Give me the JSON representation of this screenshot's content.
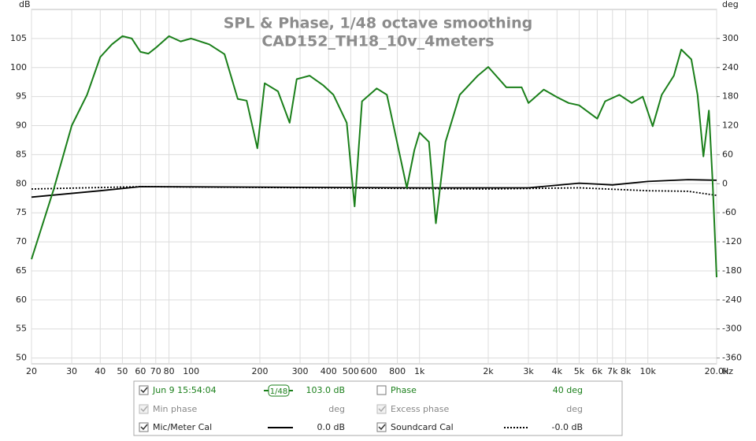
{
  "chart_data": {
    "type": "line",
    "title": "SPL & Phase, 1/48 octave smoothing",
    "subtitle": "CAD152_TH18_10v_4meters",
    "ylabel": "dB",
    "y2label": "deg",
    "xlabel": "Hz",
    "xscale": "log",
    "grid": true,
    "xlim": [
      20,
      20000
    ],
    "xticks": [
      20,
      30,
      40,
      50,
      60,
      70,
      80,
      100,
      200,
      300,
      400,
      500,
      600,
      800,
      {
        "value": 1000,
        "label": "1k"
      },
      {
        "value": 2000,
        "label": "2k"
      },
      {
        "value": 3000,
        "label": "3k"
      },
      {
        "value": 4000,
        "label": "4k"
      },
      {
        "value": 5000,
        "label": "5k"
      },
      {
        "value": 6000,
        "label": "6k"
      },
      {
        "value": 7000,
        "label": "7k"
      },
      {
        "value": 8000,
        "label": "8k"
      },
      {
        "value": 10000,
        "label": "10k"
      },
      {
        "value": 20000,
        "label": "20.0k"
      }
    ],
    "ylim": [
      49,
      110
    ],
    "yticks": [
      50,
      55,
      60,
      65,
      70,
      75,
      80,
      85,
      90,
      95,
      100,
      105
    ],
    "y2lim": [
      -372,
      360
    ],
    "y2ticks": [
      -360,
      -300,
      -240,
      -180,
      -120,
      -60,
      0,
      60,
      120,
      180,
      240,
      300
    ],
    "series": [
      {
        "name": "Jun 9 15:54:04",
        "color": "#1a7f1a",
        "style": "solid",
        "x": [
          20,
          25,
          30,
          35,
          40,
          45,
          50,
          55,
          60,
          65,
          70,
          80,
          90,
          100,
          120,
          140,
          160,
          175,
          195,
          210,
          240,
          270,
          290,
          330,
          380,
          420,
          480,
          520,
          560,
          650,
          720,
          800,
          880,
          950,
          1000,
          1100,
          1180,
          1300,
          1500,
          1800,
          2000,
          2400,
          2800,
          3000,
          3500,
          4000,
          4500,
          5000,
          6000,
          6500,
          7500,
          8500,
          9500,
          10500,
          11500,
          13000,
          14000,
          15500,
          16500,
          17500,
          18500,
          19200,
          20000
        ],
        "values": [
          67,
          79,
          90,
          95.3,
          101.8,
          104,
          105.4,
          105,
          102.7,
          102.4,
          103.4,
          105.4,
          104.5,
          105,
          104,
          102.3,
          94.6,
          94.3,
          86.1,
          97.3,
          95.9,
          90.5,
          98,
          98.6,
          96.9,
          95.3,
          90.5,
          76.1,
          94.2,
          96.4,
          95.3,
          86.9,
          79.3,
          85.8,
          88.8,
          87.2,
          73.2,
          87.2,
          95.3,
          98.6,
          100.1,
          96.6,
          96.6,
          93.9,
          96.2,
          94.9,
          93.9,
          93.5,
          91.2,
          94.2,
          95.3,
          93.9,
          95,
          89.9,
          95.3,
          98.6,
          103.1,
          101.4,
          95.3,
          84.7,
          92.6,
          80.4,
          63.9
        ]
      },
      {
        "name": "Mic/Meter Cal",
        "color": "#000000",
        "style": "solid",
        "x": [
          20,
          40,
          60,
          1000,
          3000,
          5000,
          7000,
          10000,
          15000,
          20000
        ],
        "values": [
          77.7,
          78.8,
          79.5,
          79.3,
          79.3,
          80.1,
          79.8,
          80.4,
          80.7,
          80.6
        ]
      },
      {
        "name": "Soundcard Cal",
        "color": "#000000",
        "style": "dotted",
        "x": [
          20,
          60,
          2000,
          5000,
          10000,
          15000,
          20000
        ],
        "values": [
          79.1,
          79.5,
          79.1,
          79.3,
          78.8,
          78.7,
          78
        ]
      }
    ]
  },
  "legend_panel": {
    "smoothing": "1/48",
    "spl_offset": "103.0 dB",
    "phase": "Phase",
    "phase_offset": "40 deg",
    "min_phase": "Min phase",
    "min_phase_unit": "deg",
    "excess_phase": "Excess phase",
    "excess_phase_unit": "deg",
    "mic_offset": "0.0 dB",
    "soundcard_offset": "-0.0 dB"
  }
}
